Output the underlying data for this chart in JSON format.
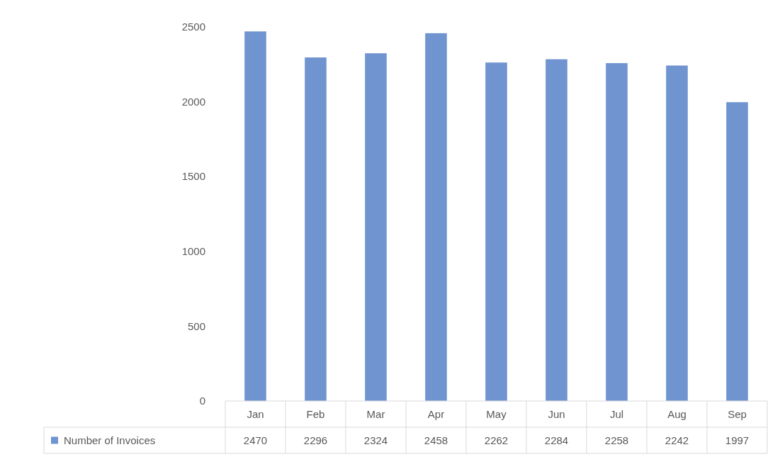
{
  "chart_data": {
    "type": "bar",
    "categories": [
      "Jan",
      "Feb",
      "Mar",
      "Apr",
      "May",
      "Jun",
      "Jul",
      "Aug",
      "Sep"
    ],
    "series": [
      {
        "name": "Number of Invoices",
        "color": "#7094d0",
        "values": [
          2470,
          2296,
          2324,
          2458,
          2262,
          2284,
          2258,
          2242,
          1997
        ]
      }
    ],
    "ylim": [
      0,
      2500
    ],
    "yticks": [
      0,
      500,
      1000,
      1500,
      2000,
      2500
    ],
    "grid": false,
    "legend": "bottom",
    "data_labels": true
  }
}
